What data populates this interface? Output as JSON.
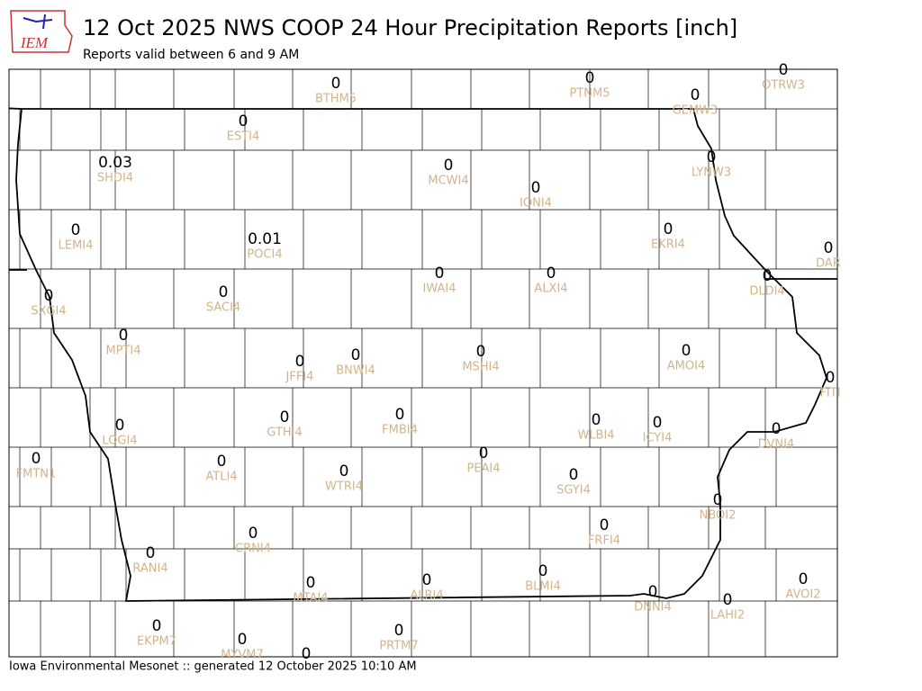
{
  "header": {
    "logo_text": "IEM",
    "title": "12 Oct 2025 NWS COOP 24 Hour Precipitation Reports [inch]",
    "subtitle": "Reports valid between 6 and 9 AM"
  },
  "stations": [
    {
      "value": 0,
      "id": "BTHM5"
    },
    {
      "value": 0,
      "id": "PTNM5"
    },
    {
      "value": 0,
      "id": "OTRW3"
    },
    {
      "value": 0,
      "id": "GEMW3"
    },
    {
      "value": 0,
      "id": "ESTI4"
    },
    {
      "value": 0.03,
      "id": "SHDI4"
    },
    {
      "value": 0,
      "id": "MCWI4"
    },
    {
      "value": 0,
      "id": "LYNW3"
    },
    {
      "value": 0,
      "id": "IONI4"
    },
    {
      "value": 0,
      "id": "LEMI4"
    },
    {
      "value": 0.01,
      "id": "POCI4"
    },
    {
      "value": 0,
      "id": "EKRI4"
    },
    {
      "value": 0,
      "id": "DAR"
    },
    {
      "value": 0,
      "id": "SXGI4"
    },
    {
      "value": 0,
      "id": "IWAI4"
    },
    {
      "value": 0,
      "id": "ALXI4"
    },
    {
      "value": 0,
      "id": "DLDI4"
    },
    {
      "value": 0,
      "id": "SACI4"
    },
    {
      "value": 0,
      "id": "MPTI4"
    },
    {
      "value": 0,
      "id": "AMOI4"
    },
    {
      "value": 0,
      "id": "JFFI4"
    },
    {
      "value": 0,
      "id": "BNWI4"
    },
    {
      "value": 0,
      "id": "MSHI4"
    },
    {
      "value": 0,
      "id": "FITI"
    },
    {
      "value": 0,
      "id": "LOGI4"
    },
    {
      "value": 0,
      "id": "GTHI4"
    },
    {
      "value": 0,
      "id": "FMBI4"
    },
    {
      "value": 0,
      "id": "WLBI4"
    },
    {
      "value": 0,
      "id": "ICYI4"
    },
    {
      "value": 0,
      "id": "DVNI4"
    },
    {
      "value": 0,
      "id": "FMTN1"
    },
    {
      "value": 0,
      "id": "ATLI4"
    },
    {
      "value": 0,
      "id": "PEAI4"
    },
    {
      "value": 0,
      "id": "WTRI4"
    },
    {
      "value": 0,
      "id": "SGYI4"
    },
    {
      "value": 0,
      "id": "NBOI2"
    },
    {
      "value": 0,
      "id": "CRNI4"
    },
    {
      "value": 0,
      "id": "FRFI4"
    },
    {
      "value": 0,
      "id": "RANI4"
    },
    {
      "value": 0,
      "id": "MTAI4"
    },
    {
      "value": 0,
      "id": "ALRI4"
    },
    {
      "value": 0,
      "id": "BLMI4"
    },
    {
      "value": 0,
      "id": "AVOI2"
    },
    {
      "value": 0,
      "id": "DNNI4"
    },
    {
      "value": 0,
      "id": "LAHI2"
    },
    {
      "value": 0,
      "id": "EKPM7"
    },
    {
      "value": 0,
      "id": "MYVM7"
    },
    {
      "value": 0,
      "id": "PRTM7"
    },
    {
      "value": 0
    }
  ],
  "footer": "Iowa Environmental Mesonet :: generated 12 October 2025 10:10 AM"
}
